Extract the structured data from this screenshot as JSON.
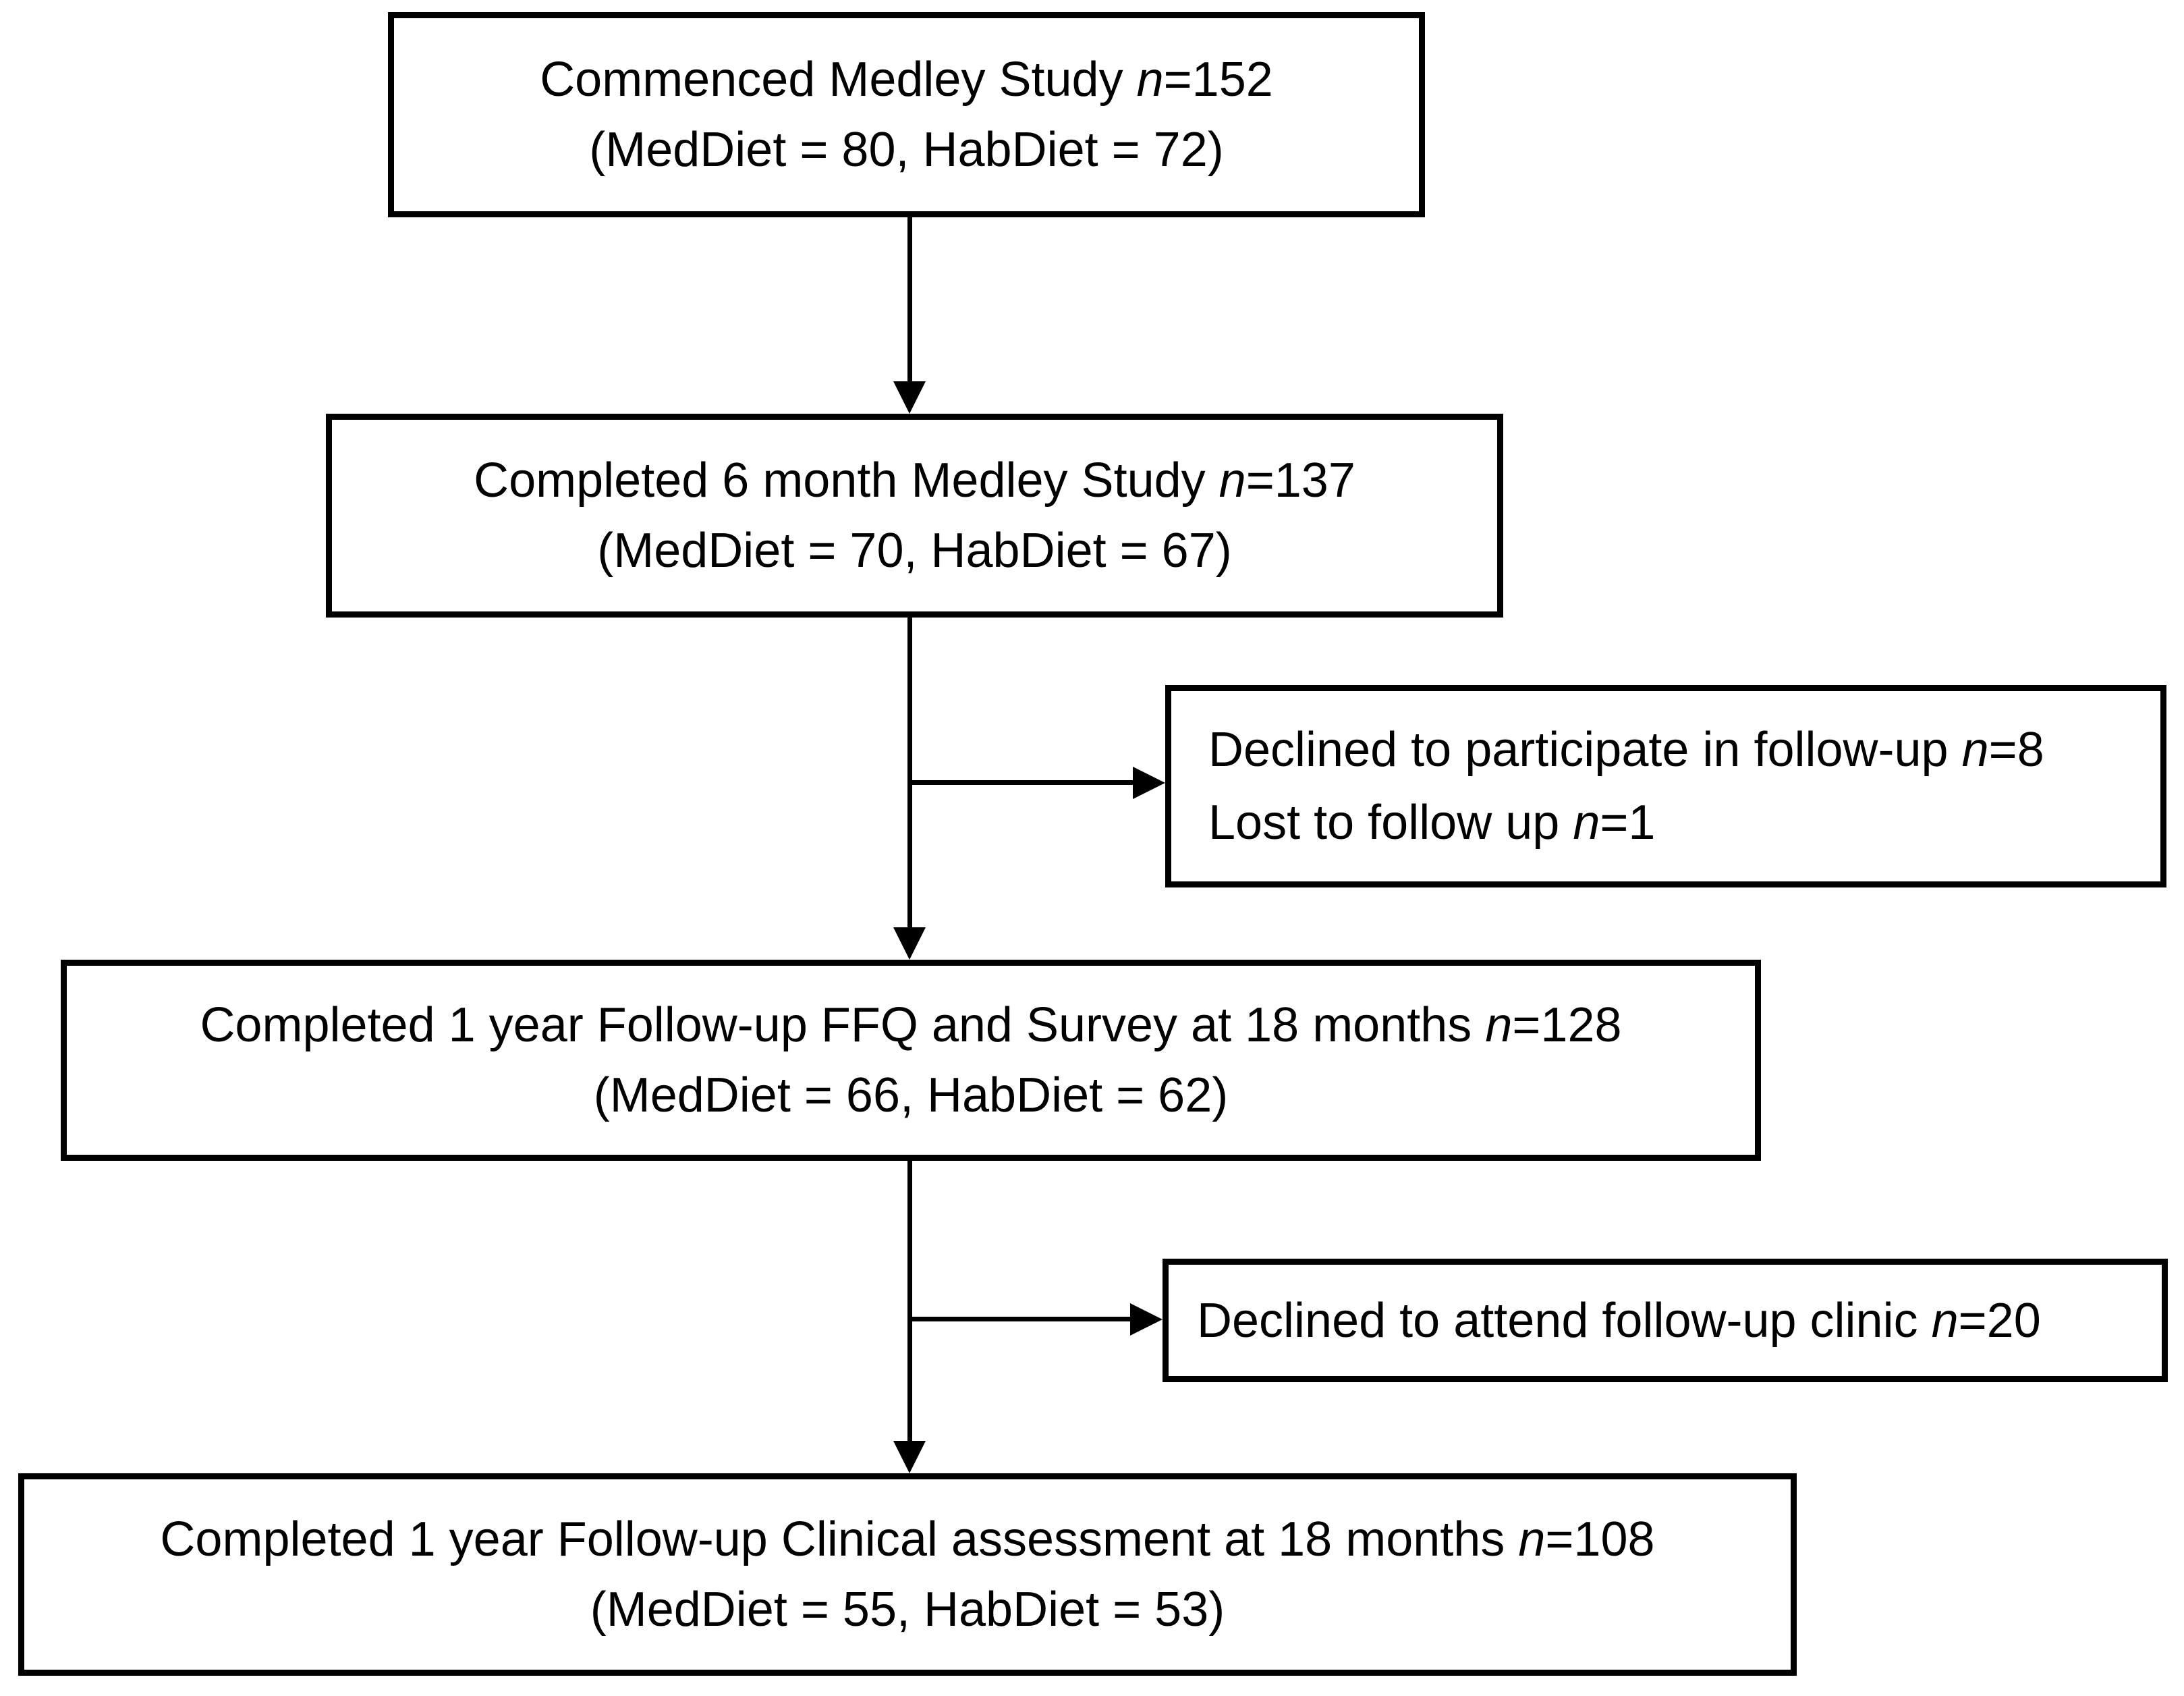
{
  "diagram": {
    "type": "participant-flow-chart",
    "colors": {
      "border": "#000000",
      "background": "#ffffff",
      "text": "#000000"
    },
    "boxes": [
      {
        "id": "commenced",
        "lines": [
          "Commenced Medley Study n=152",
          "(MedDiet = 80, HabDiet = 72)"
        ]
      },
      {
        "id": "completed-6-month",
        "lines": [
          "Completed 6 month Medley Study n=137",
          "(MedDiet = 70, HabDiet = 67)"
        ]
      },
      {
        "id": "declined-followup",
        "lines": [
          "Declined to participate in follow-up n=8",
          "Lost to follow up n=1"
        ]
      },
      {
        "id": "completed-1-year-ffq-survey",
        "lines": [
          "Completed 1 year Follow-up FFQ and Survey at 18 months n=128",
          "(MedDiet = 66, HabDiet = 62)"
        ]
      },
      {
        "id": "declined-clinic",
        "lines": [
          "Declined to attend follow-up clinic n=20"
        ]
      },
      {
        "id": "completed-1-year-clinical",
        "lines": [
          "Completed 1 year Follow-up Clinical assessment at 18 months n=108",
          "(MedDiet = 55, HabDiet = 53)"
        ]
      }
    ]
  }
}
